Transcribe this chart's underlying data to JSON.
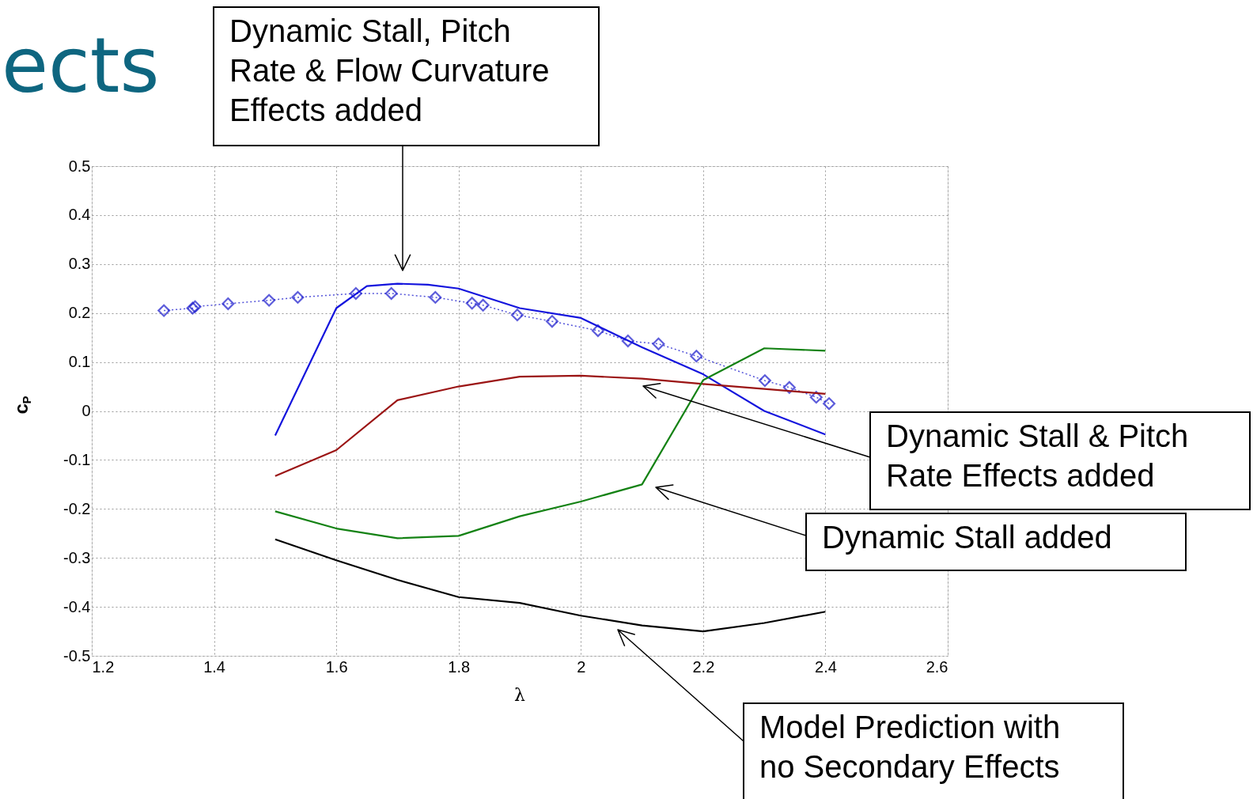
{
  "chart_data": {
    "type": "line",
    "title": "ects",
    "xlabel": "λ",
    "ylabel": "c$_{P}$",
    "xlim": [
      1.2,
      2.6
    ],
    "xticks": [
      1.2,
      1.4,
      1.6,
      1.8,
      2,
      2.2,
      2.4,
      2.6
    ],
    "ylim": [
      -0.5,
      0.5
    ],
    "yticks": [
      -0.5,
      -0.4,
      -0.3,
      -0.2,
      -0.1,
      0,
      0.1,
      0.2,
      0.3,
      0.4,
      0.5
    ],
    "grid": true,
    "series": [
      {
        "color": "#1a1acc",
        "marker": "diamond",
        "line_style": "dotted",
        "x": [
          1.318,
          1.365,
          1.369,
          1.423,
          1.49,
          1.537,
          1.632,
          1.69,
          1.762,
          1.822,
          1.84,
          1.896,
          1.953,
          2.028,
          2.077,
          2.127,
          2.189,
          2.301,
          2.341,
          2.385,
          2.406
        ],
        "values": [
          0.205,
          0.21,
          0.213,
          0.219,
          0.226,
          0.232,
          0.24,
          0.24,
          0.232,
          0.22,
          0.216,
          0.196,
          0.183,
          0.164,
          0.143,
          0.137,
          0.112,
          0.062,
          0.048,
          0.028,
          0.015
        ]
      },
      {
        "color": "#1414dd",
        "marker": "none",
        "line_style": "solid",
        "x": [
          1.5,
          1.6,
          1.65,
          1.7,
          1.75,
          1.8,
          1.9,
          2.0,
          2.1,
          2.2,
          2.3,
          2.4
        ],
        "values": [
          -0.05,
          0.21,
          0.255,
          0.26,
          0.258,
          0.25,
          0.21,
          0.19,
          0.13,
          0.075,
          0.0,
          -0.048
        ]
      },
      {
        "color": "#9b1414",
        "marker": "none",
        "line_style": "solid",
        "x": [
          1.5,
          1.6,
          1.7,
          1.8,
          1.9,
          2.0,
          2.1,
          2.2,
          2.3,
          2.4
        ],
        "values": [
          -0.133,
          -0.08,
          0.022,
          0.05,
          0.07,
          0.072,
          0.066,
          0.055,
          0.045,
          0.035
        ]
      },
      {
        "color": "#148214",
        "marker": "none",
        "line_style": "solid",
        "x": [
          1.5,
          1.6,
          1.7,
          1.8,
          1.9,
          2.0,
          2.1,
          2.2,
          2.3,
          2.4
        ],
        "values": [
          -0.205,
          -0.24,
          -0.26,
          -0.255,
          -0.215,
          -0.185,
          -0.15,
          0.063,
          0.128,
          0.123
        ]
      },
      {
        "color": "#000000",
        "marker": "none",
        "line_style": "solid",
        "x": [
          1.5,
          1.6,
          1.7,
          1.8,
          1.9,
          2.0,
          2.1,
          2.2,
          2.3,
          2.4
        ],
        "values": [
          -0.262,
          -0.305,
          -0.345,
          -0.38,
          -0.392,
          -0.418,
          -0.438,
          -0.45,
          -0.433,
          -0.41
        ]
      }
    ],
    "annotations": [
      "Dynamic Stall, Pitch\nRate & Flow Curvature\nEffects added",
      "Dynamic Stall & Pitch\nRate Effects added",
      "Dynamic Stall added",
      "Model Prediction with\nno Secondary Effects"
    ]
  }
}
